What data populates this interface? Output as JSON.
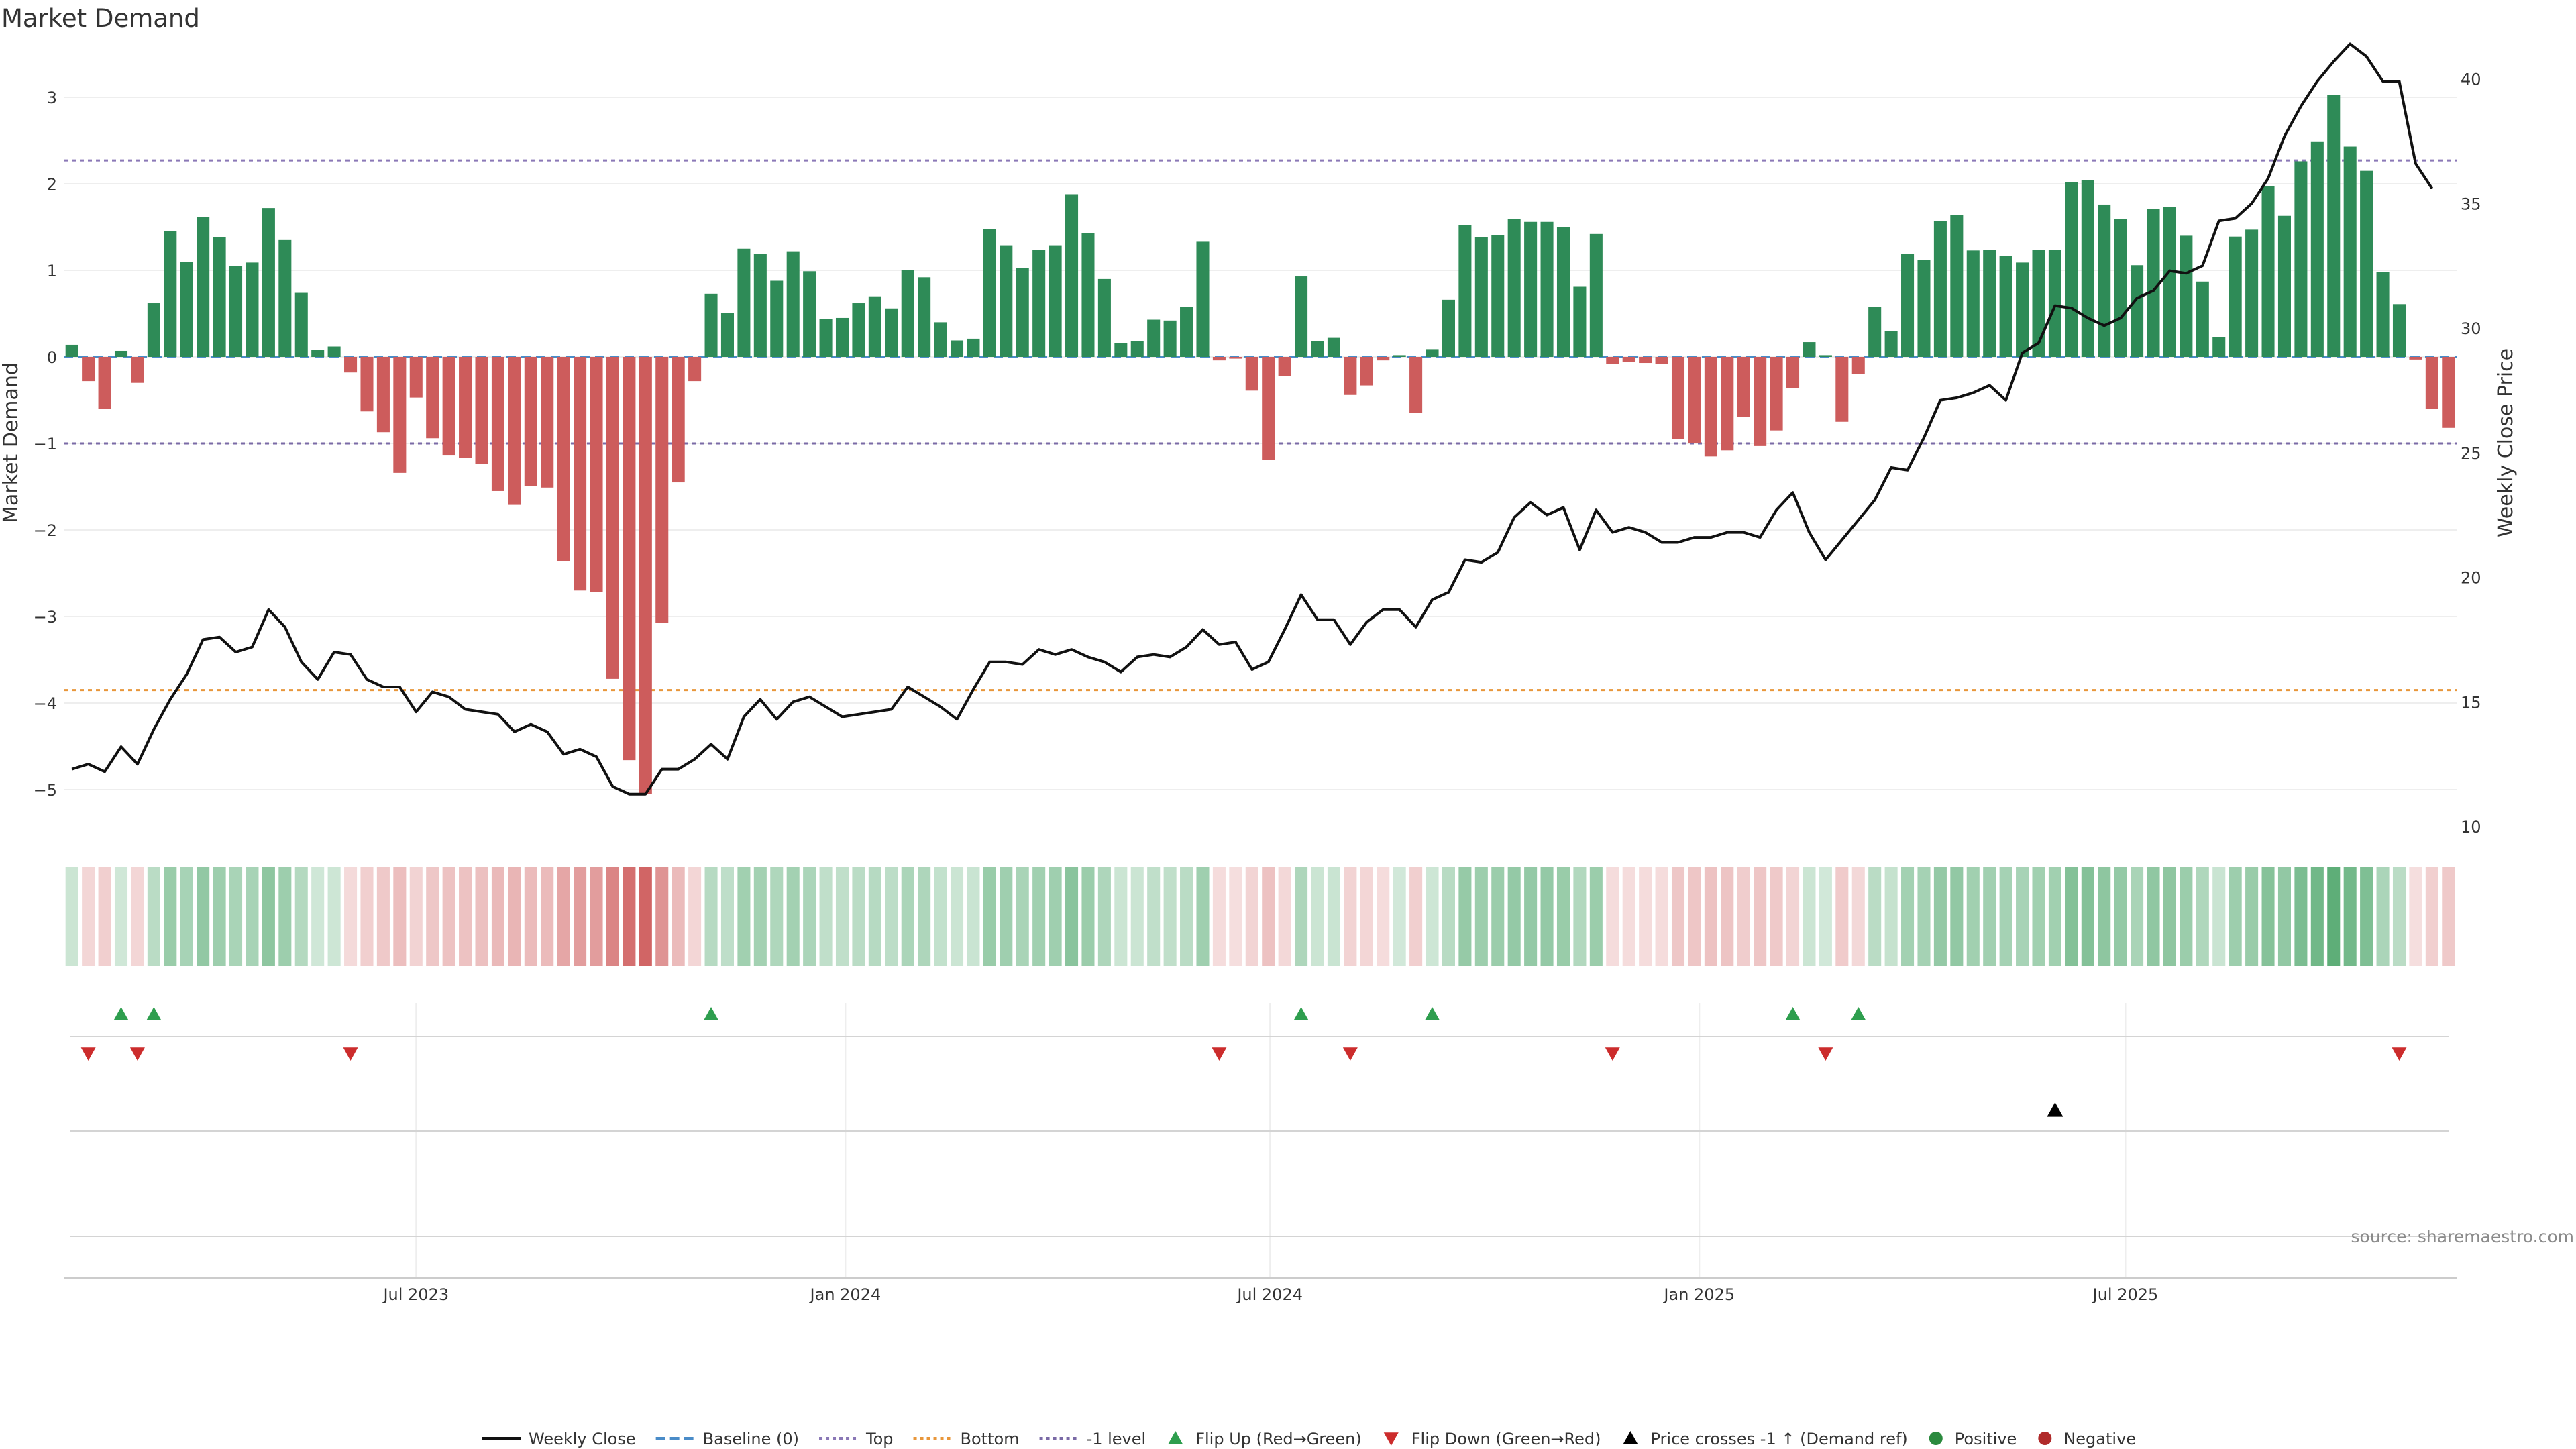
{
  "chart_data": {
    "type": "bar",
    "title": "Market Demand",
    "ylabel": "Market Demand",
    "y2label": "Weekly Close Price",
    "ylim": [
      -5.5,
      3.4
    ],
    "y2lim": [
      10,
      41
    ],
    "yticks": [
      "3",
      "2",
      "1",
      "0",
      "−1",
      "−2",
      "−3",
      "−4",
      "−5"
    ],
    "yticks_values": [
      3,
      2,
      1,
      0,
      -1,
      -2,
      -3,
      -4,
      -5
    ],
    "y2ticks": [
      "40",
      "35",
      "30",
      "25",
      "20",
      "15",
      "10"
    ],
    "y2ticks_values": [
      40,
      35,
      30,
      25,
      20,
      15,
      10
    ],
    "xticks": [
      "Jul 2023",
      "Jan 2024",
      "Jul 2024",
      "Jan 2025",
      "Jul 2025"
    ],
    "xticks_index": [
      21.5,
      47.7,
      73.6,
      99.8,
      125.8
    ],
    "reference_lines": {
      "top": 2.27,
      "bottom": -3.85,
      "minus_one": -1,
      "baseline": 0
    },
    "demand": [
      0.14,
      -0.28,
      -0.6,
      0.07,
      -0.3,
      0.62,
      1.45,
      1.1,
      1.62,
      1.38,
      1.05,
      1.09,
      1.72,
      1.35,
      0.74,
      0.08,
      0.12,
      -0.18,
      -0.63,
      -0.87,
      -1.34,
      -0.47,
      -0.94,
      -1.14,
      -1.17,
      -1.24,
      -1.55,
      -1.71,
      -1.49,
      -1.51,
      -2.36,
      -2.7,
      -2.72,
      -3.72,
      -4.66,
      -5.05,
      -3.07,
      -1.45,
      -0.28,
      0.73,
      0.51,
      1.25,
      1.19,
      0.88,
      1.22,
      0.99,
      0.44,
      0.45,
      0.62,
      0.7,
      0.56,
      1.0,
      0.92,
      0.4,
      0.19,
      0.21,
      1.48,
      1.29,
      1.03,
      1.24,
      1.29,
      1.88,
      1.43,
      0.9,
      0.16,
      0.18,
      0.43,
      0.42,
      0.58,
      1.33,
      -0.04,
      -0.02,
      -0.39,
      -1.19,
      -0.22,
      0.93,
      0.18,
      0.22,
      -0.44,
      -0.33,
      -0.04,
      0.02,
      -0.65,
      0.09,
      0.66,
      1.52,
      1.38,
      1.41,
      1.59,
      1.56,
      1.56,
      1.5,
      0.81,
      1.42,
      -0.08,
      -0.06,
      -0.07,
      -0.08,
      -0.95,
      -1.0,
      -1.15,
      -1.08,
      -0.69,
      -1.03,
      -0.85,
      -0.36,
      0.17,
      0.02,
      -0.75,
      -0.2,
      0.58,
      0.3,
      1.19,
      1.12,
      1.57,
      1.64,
      1.23,
      1.24,
      1.17,
      1.09,
      1.24,
      1.24,
      2.02,
      2.04,
      1.76,
      1.59,
      1.06,
      1.71,
      1.73,
      1.4,
      0.87,
      0.23,
      1.39,
      1.47,
      1.97,
      1.63,
      2.26,
      2.49,
      3.03,
      2.43,
      2.15,
      0.98,
      0.61,
      -0.03,
      -0.6,
      -0.82
    ],
    "weekly_close": [
      12.3,
      12.5,
      12.2,
      13.2,
      12.5,
      13.9,
      15.1,
      16.1,
      17.5,
      17.6,
      17.0,
      17.2,
      18.7,
      18.0,
      16.6,
      15.9,
      17.0,
      16.9,
      15.9,
      15.6,
      15.6,
      14.6,
      15.4,
      15.2,
      14.7,
      14.6,
      14.5,
      13.8,
      14.1,
      13.8,
      12.9,
      13.1,
      12.8,
      11.6,
      11.3,
      11.3,
      12.3,
      12.3,
      12.7,
      13.3,
      12.7,
      14.4,
      15.1,
      14.3,
      15.0,
      15.2,
      14.8,
      14.4,
      14.5,
      14.6,
      14.7,
      15.6,
      15.2,
      14.8,
      14.3,
      15.5,
      16.6,
      16.6,
      16.5,
      17.1,
      16.9,
      17.1,
      16.8,
      16.6,
      16.2,
      16.8,
      16.9,
      16.8,
      17.2,
      17.9,
      17.3,
      17.4,
      16.3,
      16.6,
      17.9,
      19.3,
      18.3,
      18.3,
      17.3,
      18.2,
      18.7,
      18.7,
      18.0,
      19.1,
      19.4,
      20.7,
      20.6,
      21.0,
      22.4,
      23.0,
      22.5,
      22.8,
      21.1,
      22.7,
      21.8,
      22.0,
      21.8,
      21.4,
      21.4,
      21.6,
      21.6,
      21.8,
      21.8,
      21.6,
      22.7,
      23.4,
      21.8,
      20.7,
      21.5,
      22.3,
      23.1,
      24.4,
      24.3,
      25.6,
      27.1,
      27.2,
      27.4,
      27.7,
      27.1,
      29.0,
      29.4,
      30.9,
      30.8,
      30.4,
      30.1,
      30.4,
      31.2,
      31.5,
      32.3,
      32.2,
      32.5,
      34.3,
      34.4,
      35.0,
      36.0,
      37.7,
      38.9,
      39.9,
      40.7,
      41.4,
      40.9,
      39.9,
      39.9,
      36.6,
      35.6
    ],
    "flip_up_index": [
      3,
      5,
      39,
      75,
      83,
      105,
      109
    ],
    "flip_down_index": [
      1,
      4,
      17,
      70,
      78,
      94,
      107,
      142
    ],
    "price_cross_index": [
      121
    ],
    "series": [
      {
        "name": "Weekly Close",
        "color": "#111111"
      },
      {
        "name": "Baseline (0)",
        "color": "#4a8cc8"
      },
      {
        "name": "Top",
        "color": "#8a78b6"
      },
      {
        "name": "Bottom",
        "color": "#e8963a"
      },
      {
        "name": "-1 level",
        "color": "#7a6aa6"
      },
      {
        "name": "Flip Up (Red→Green)",
        "color": "#2e9e4e"
      },
      {
        "name": "Flip Down (Green→Red)",
        "color": "#cc2c2c"
      },
      {
        "name": "Price crosses -1 ↑ (Demand ref)",
        "color": "#000000"
      },
      {
        "name": "Positive",
        "color": "#2b8a3e"
      },
      {
        "name": "Negative",
        "color": "#b02a2a"
      }
    ],
    "colors": {
      "positive_bar": "#2e8b57",
      "negative_bar": "#cd5c5c"
    },
    "legend_position": "bottom-center",
    "grid": true,
    "source": "source: sharemaestro.com"
  }
}
